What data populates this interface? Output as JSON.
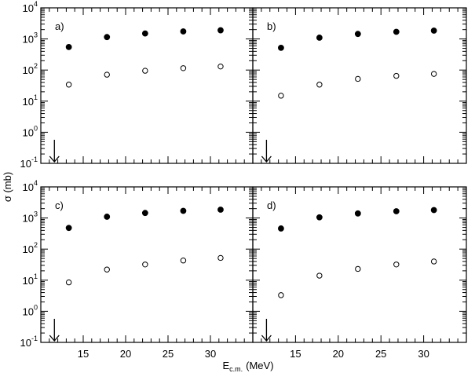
{
  "chart_data": {
    "type": "scatter",
    "ylabel": "σ (mb)",
    "xlabel": {
      "main": "E",
      "sub": "c.m.",
      "unit": "(MeV)"
    },
    "xlim": [
      10,
      35
    ],
    "ylim_exp": [
      -1,
      4
    ],
    "ylog": true,
    "grid": false,
    "x_ticks": [
      15,
      20,
      25,
      30
    ],
    "y_tick_exponents": [
      -1,
      0,
      1,
      2,
      3,
      4
    ],
    "y_tick_base": "10",
    "arrow_x": 11.6,
    "panels": [
      {
        "label": "a)",
        "series": [
          {
            "marker": "filled",
            "x": [
              13.3,
              17.8,
              22.3,
              26.8,
              31.2
            ],
            "y": [
              550,
              1150,
              1500,
              1750,
              1900
            ]
          },
          {
            "marker": "open",
            "x": [
              13.3,
              17.8,
              22.3,
              26.8,
              31.2
            ],
            "y": [
              34,
              71,
              95,
              115,
              130
            ]
          }
        ]
      },
      {
        "label": "b)",
        "series": [
          {
            "marker": "filled",
            "x": [
              13.3,
              17.8,
              22.3,
              26.8,
              31.2
            ],
            "y": [
              520,
              1100,
              1450,
              1700,
              1850
            ]
          },
          {
            "marker": "open",
            "x": [
              13.3,
              17.8,
              22.3,
              26.8,
              31.2
            ],
            "y": [
              15,
              34,
              52,
              65,
              75
            ]
          }
        ]
      },
      {
        "label": "c)",
        "series": [
          {
            "marker": "filled",
            "x": [
              13.3,
              17.8,
              22.3,
              26.8,
              31.2
            ],
            "y": [
              480,
              1100,
              1450,
              1700,
              1850
            ]
          },
          {
            "marker": "open",
            "x": [
              13.3,
              17.8,
              22.3,
              26.8,
              31.2
            ],
            "y": [
              8.5,
              22,
              32,
              43,
              52
            ]
          }
        ]
      },
      {
        "label": "d)",
        "series": [
          {
            "marker": "filled",
            "x": [
              13.3,
              17.8,
              22.3,
              26.8,
              31.2
            ],
            "y": [
              460,
              1050,
              1400,
              1650,
              1800
            ]
          },
          {
            "marker": "open",
            "x": [
              13.3,
              17.8,
              22.3,
              26.8,
              31.2
            ],
            "y": [
              3.3,
              14,
              23,
              32,
              40
            ]
          }
        ]
      }
    ]
  }
}
